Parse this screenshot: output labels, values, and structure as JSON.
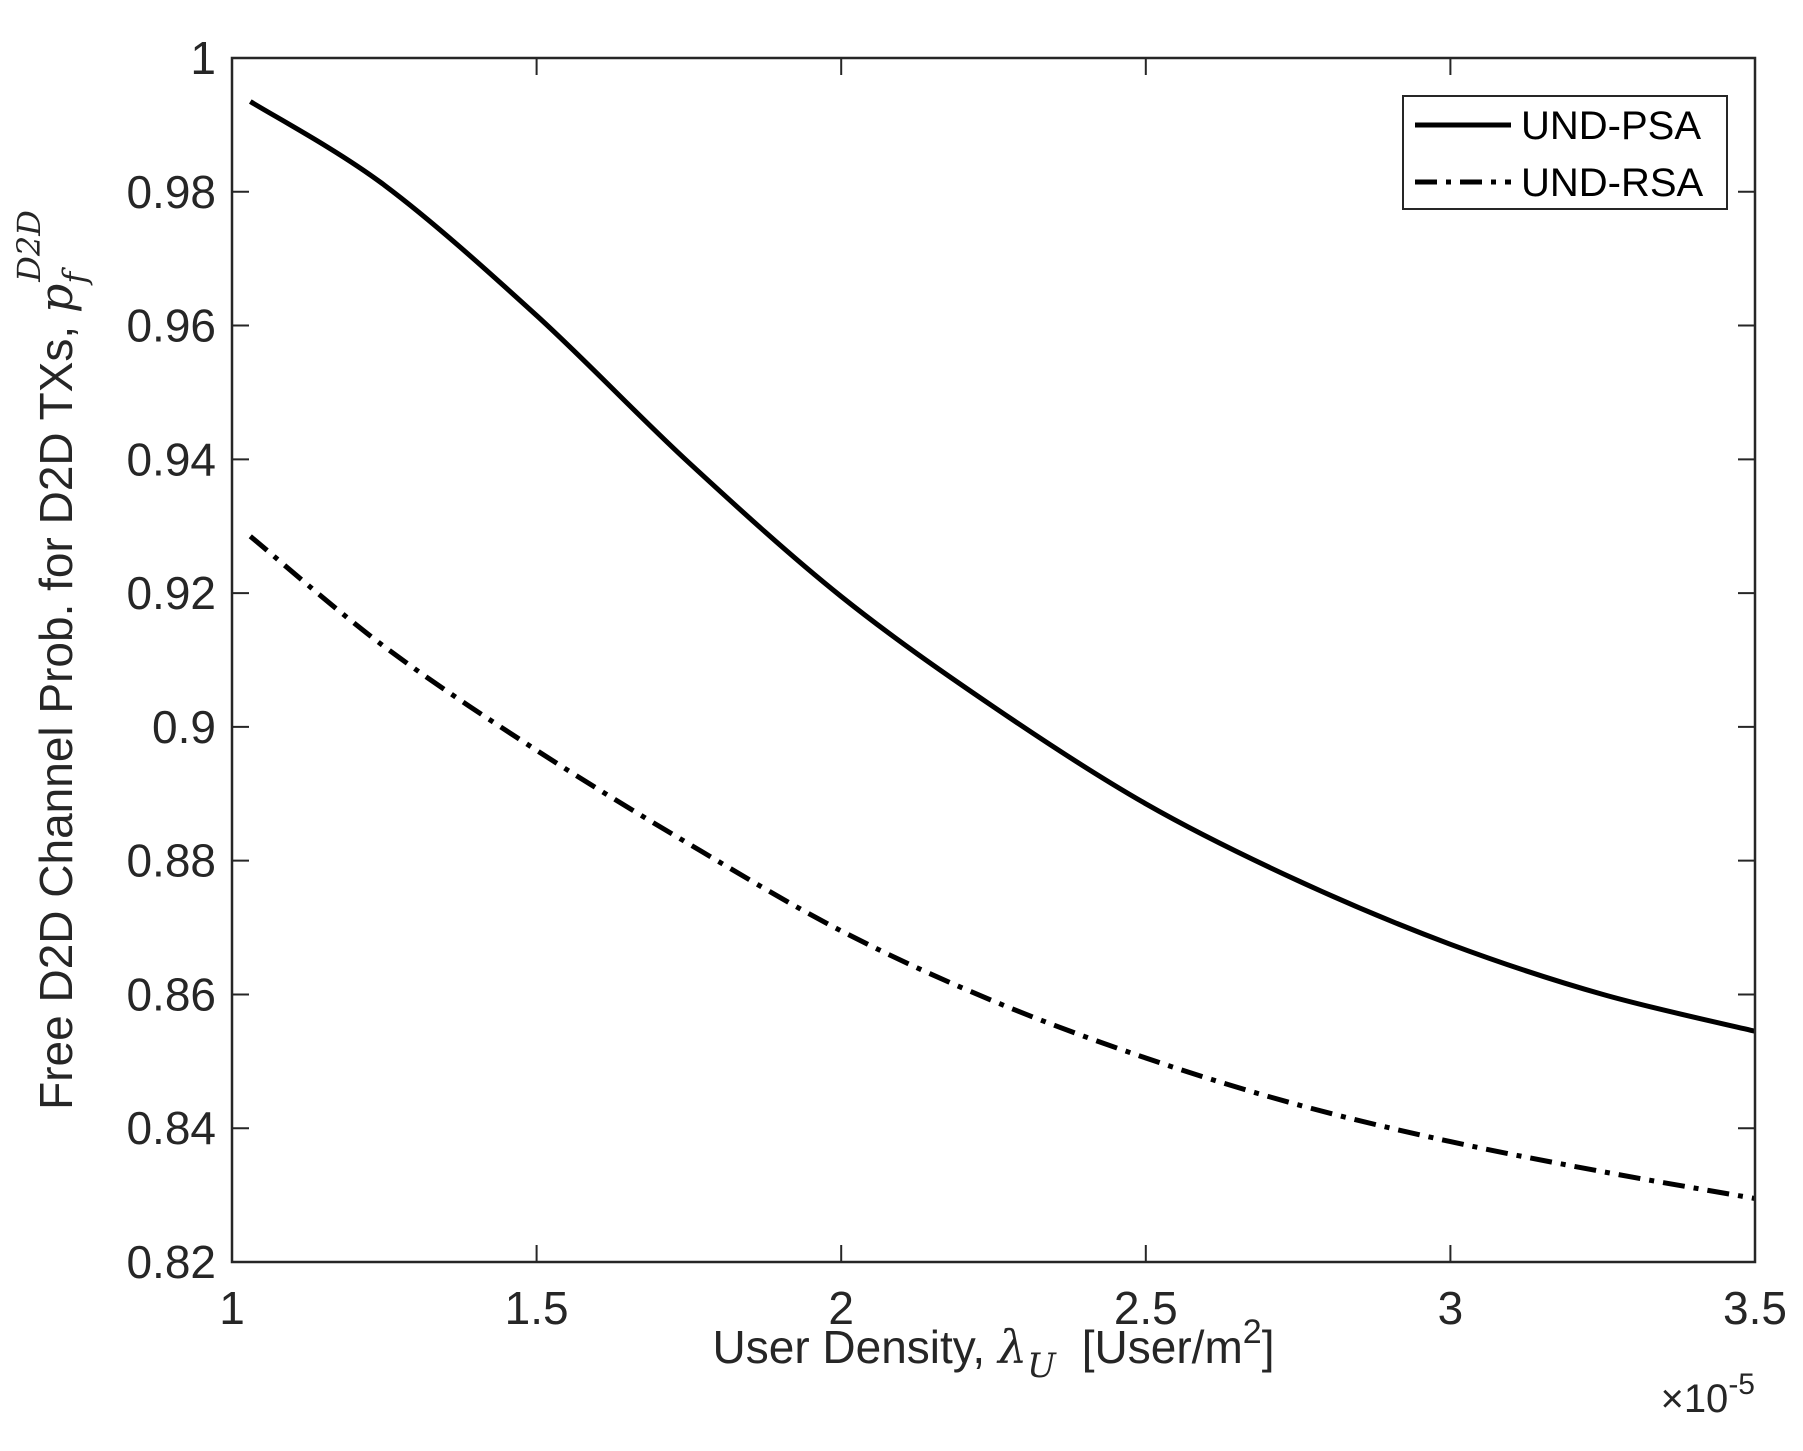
{
  "chart_data": {
    "type": "line",
    "xlabel": {
      "prefix": "User Density, ",
      "symbol": "λ",
      "subscript": "U",
      "unit_open": "[User/m",
      "unit_sup": "2",
      "unit_close": "]"
    },
    "ylabel": {
      "prefix": "Free D2D Channel Prob. for D2D TXs, ",
      "symbol": "p",
      "subscript": "f",
      "superscript": "D2D"
    },
    "x_multiplier": {
      "times": "×10",
      "exponent": "-5"
    },
    "xlim": [
      1,
      3.5
    ],
    "ylim": [
      0.82,
      1.0
    ],
    "x_ticks": [
      "1",
      "1.5",
      "2",
      "2.5",
      "3",
      "3.5"
    ],
    "y_ticks": [
      "0.82",
      "0.84",
      "0.86",
      "0.88",
      "0.9",
      "0.92",
      "0.94",
      "0.96",
      "0.98",
      "1"
    ],
    "grid": false,
    "legend_position": "top-right",
    "series": [
      {
        "name": "UND-PSA",
        "line_style": "solid",
        "color": "#000000",
        "x": [
          1.03,
          1.25,
          1.5,
          1.75,
          2.0,
          2.25,
          2.5,
          2.75,
          3.0,
          3.25,
          3.5
        ],
        "y": [
          0.9935,
          0.981,
          0.9615,
          0.9395,
          0.9195,
          0.903,
          0.8885,
          0.877,
          0.8675,
          0.86,
          0.8545
        ]
      },
      {
        "name": "UND-RSA",
        "line_style": "dash-dot",
        "color": "#000000",
        "x": [
          1.03,
          1.25,
          1.5,
          1.75,
          2.0,
          2.25,
          2.5,
          2.75,
          3.0,
          3.25,
          3.5
        ],
        "y": [
          0.9285,
          0.912,
          0.8965,
          0.8825,
          0.8695,
          0.859,
          0.8505,
          0.8435,
          0.838,
          0.8335,
          0.8295
        ]
      }
    ]
  }
}
